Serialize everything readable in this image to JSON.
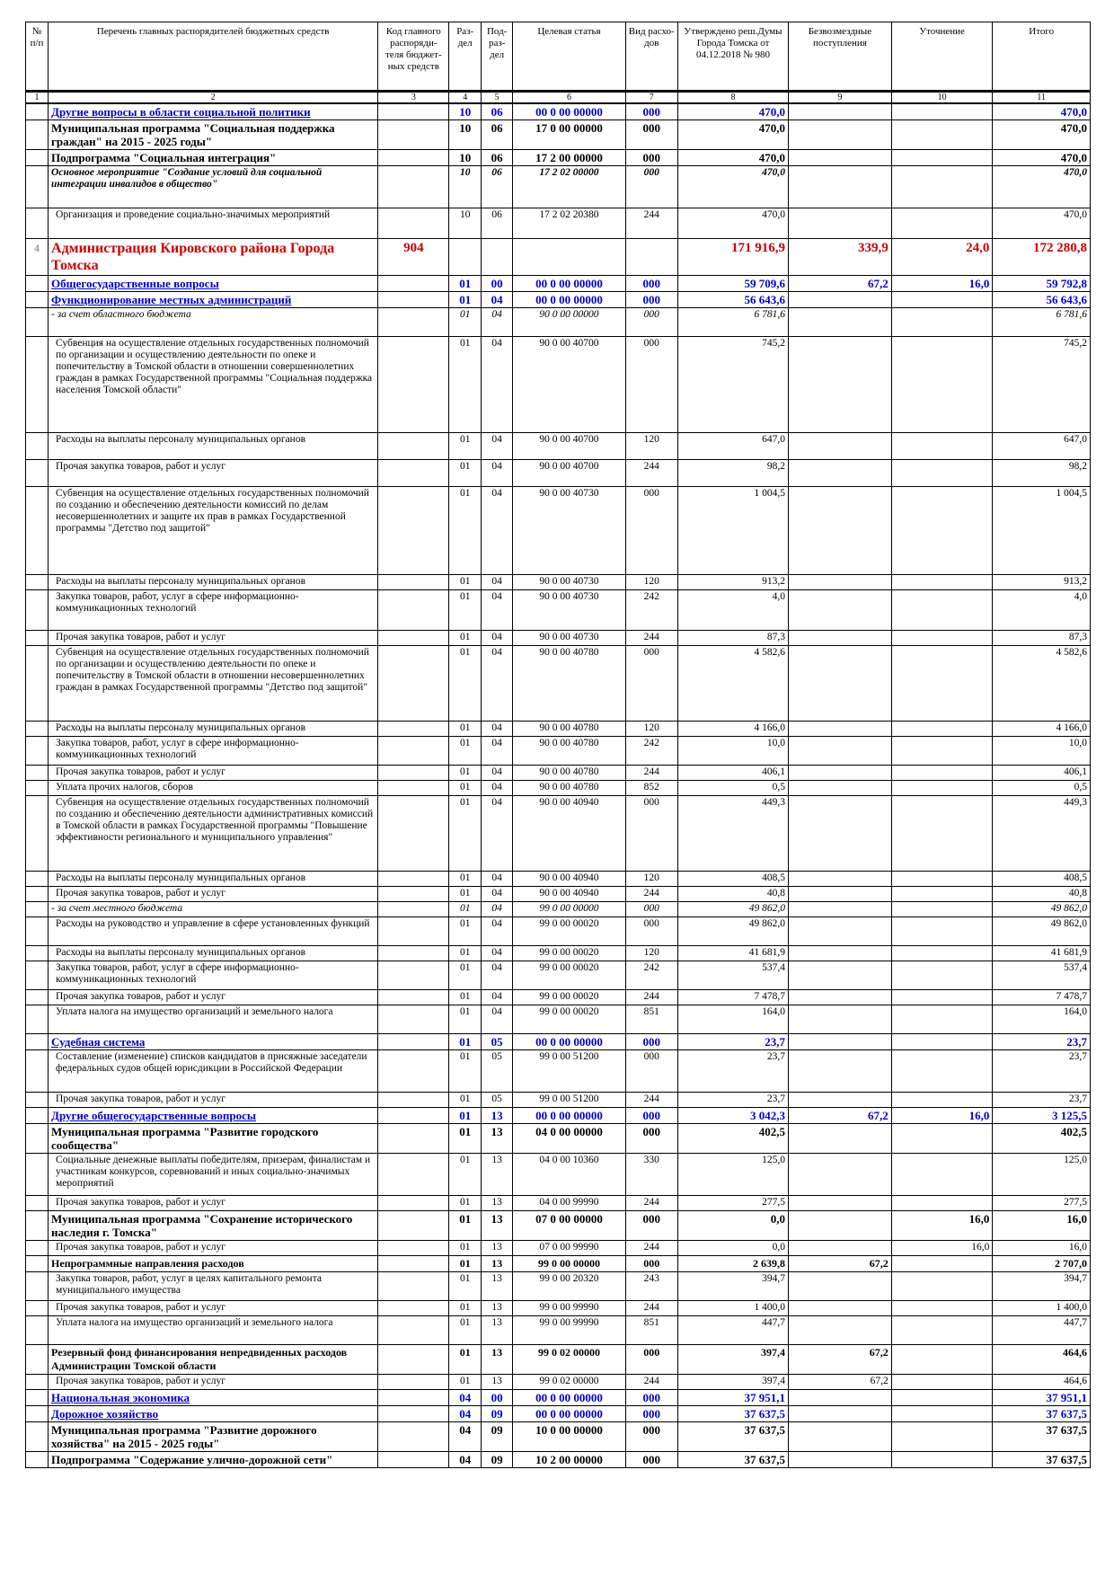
{
  "headers": [
    "№ п/п",
    "Перечень главных распорядителей бюджетных средств",
    "Код главного распоряди-теля бюджет-ных средств",
    "Раз-дел",
    "Под-раз-дел",
    "Целевая статья",
    "Вид расхо-дов",
    "Утверждено реш.Думы Города Томска от 04.12.2018 № 980",
    "Безвозмездные поступления",
    "Уточнение",
    "Итого"
  ],
  "col_numbers": [
    "1",
    "2",
    "3",
    "4",
    "5",
    "6",
    "7",
    "8",
    "9",
    "10",
    "11"
  ],
  "rows": [
    {
      "style": "blue",
      "h": 17,
      "num": "",
      "name": "Другие вопросы в области социальной политики",
      "code": "",
      "razdel": "10",
      "podrazdel": "06",
      "cs": "00 0 00 00000",
      "vr": "000",
      "approved": "470,0",
      "bezv": "",
      "utoch": "",
      "itogo": "470,0"
    },
    {
      "style": "bold",
      "h": 32,
      "num": "",
      "name": "Муниципальная программа \"Социальная поддержка граждан\" на 2015 - 2025 годы\"",
      "code": "",
      "razdel": "10",
      "podrazdel": "06",
      "cs": "17 0 00 00000",
      "vr": "000",
      "approved": "470,0",
      "bezv": "",
      "utoch": "",
      "itogo": "470,0"
    },
    {
      "style": "bold",
      "h": 17,
      "num": "",
      "name": "Подпрограмма \"Социальная интеграция\"",
      "code": "",
      "razdel": "10",
      "podrazdel": "06",
      "cs": "17 2 00 00000",
      "vr": "000",
      "approved": "470,0",
      "bezv": "",
      "utoch": "",
      "itogo": "470,0"
    },
    {
      "style": "bolditalic",
      "h": 47,
      "num": "",
      "name": "Основное мероприятие \"Создание условий для социальной интеграции инвалидов в общество\"",
      "code": "",
      "razdel": "10",
      "podrazdel": "06",
      "cs": "17 2 02 00000",
      "vr": "000",
      "approved": "470,0",
      "bezv": "",
      "utoch": "",
      "itogo": "470,0"
    },
    {
      "style": "plain",
      "h": 34,
      "num": "",
      "name": "Организация и проведение социально-значимых мероприятий",
      "code": "",
      "razdel": "10",
      "podrazdel": "06",
      "cs": "17 2 02 20380",
      "vr": "244",
      "approved": "470,0",
      "bezv": "",
      "utoch": "",
      "itogo": "470,0"
    },
    {
      "style": "red",
      "h": 40,
      "num": "4",
      "name": "Администрация Кировского района Города Томска",
      "code": "904",
      "razdel": "",
      "podrazdel": "",
      "cs": "",
      "vr": "",
      "approved": "171 916,9",
      "bezv": "339,9",
      "utoch": "24,0",
      "itogo": "172 280,8"
    },
    {
      "style": "blue",
      "h": 17,
      "num": "",
      "name": "Общегосударственные вопросы",
      "code": "",
      "razdel": "01",
      "podrazdel": "00",
      "cs": "00 0 00 00000",
      "vr": "000",
      "approved": "59 709,6",
      "bezv": "67,2",
      "utoch": "16,0",
      "itogo": "59 792,8"
    },
    {
      "style": "blue",
      "h": 17,
      "num": "",
      "name": "Функционирование местных администраций",
      "code": "",
      "razdel": "01",
      "podrazdel": "04",
      "cs": "00 0 00 00000",
      "vr": "000",
      "approved": "56 643,6",
      "bezv": "",
      "utoch": "",
      "itogo": "56 643,6"
    },
    {
      "style": "italic",
      "h": 32,
      "num": "",
      "name": "- за счет областного бюджета",
      "code": "",
      "razdel": "01",
      "podrazdel": "04",
      "cs": "90 0 00 00000",
      "vr": "000",
      "approved": "6 781,6",
      "bezv": "",
      "utoch": "",
      "itogo": "6 781,6"
    },
    {
      "style": "plain",
      "h": 107,
      "num": "",
      "name": "Субвенция на осуществление отдельных государственных полномочий по организации и осуществлению деятельности по опеке и попечительству в Томской области в отношении совершеннолетних граждан в рамках Государственной программы \"Социальная поддержка населения Томской области\"",
      "code": "",
      "razdel": "01",
      "podrazdel": "04",
      "cs": "90 0 00 40700",
      "vr": "000",
      "approved": "745,2",
      "bezv": "",
      "utoch": "",
      "itogo": "745,2"
    },
    {
      "style": "plain",
      "h": 30,
      "num": "",
      "name": "Расходы на выплаты персоналу муниципальных органов",
      "code": "",
      "razdel": "01",
      "podrazdel": "04",
      "cs": "90 0 00 40700",
      "vr": "120",
      "approved": "647,0",
      "bezv": "",
      "utoch": "",
      "itogo": "647,0"
    },
    {
      "style": "plain",
      "h": 30,
      "num": "",
      "name": "Прочая закупка товаров, работ и услуг",
      "code": "",
      "razdel": "01",
      "podrazdel": "04",
      "cs": "90 0 00 40700",
      "vr": "244",
      "approved": "98,2",
      "bezv": "",
      "utoch": "",
      "itogo": "98,2"
    },
    {
      "style": "plain",
      "h": 98,
      "num": "",
      "name": "Субвенция на осуществление отдельных государственных полномочий по созданию и обеспечению деятельности комиссий по делам несовершеннолетних и защите их прав в рамках Государственной программы \"Детство под защитой\"",
      "code": "",
      "razdel": "01",
      "podrazdel": "04",
      "cs": "90 0 00 40730",
      "vr": "000",
      "approved": "1 004,5",
      "bezv": "",
      "utoch": "",
      "itogo": "1 004,5"
    },
    {
      "style": "plain",
      "h": 17,
      "num": "",
      "name": "Расходы на выплаты персоналу муниципальных органов",
      "code": "",
      "razdel": "01",
      "podrazdel": "04",
      "cs": "90 0 00 40730",
      "vr": "120",
      "approved": "913,2",
      "bezv": "",
      "utoch": "",
      "itogo": "913,2"
    },
    {
      "style": "plain",
      "h": 45,
      "num": "",
      "name": "Закупка товаров, работ, услуг в сфере информационно-коммуникационных технологий",
      "code": "",
      "razdel": "01",
      "podrazdel": "04",
      "cs": "90 0 00 40730",
      "vr": "242",
      "approved": "4,0",
      "bezv": "",
      "utoch": "",
      "itogo": "4,0"
    },
    {
      "style": "plain",
      "h": 17,
      "num": "",
      "name": "Прочая закупка товаров, работ и услуг",
      "code": "",
      "razdel": "01",
      "podrazdel": "04",
      "cs": "90 0 00 40730",
      "vr": "244",
      "approved": "87,3",
      "bezv": "",
      "utoch": "",
      "itogo": "87,3"
    },
    {
      "style": "plain",
      "h": 84,
      "num": "",
      "name": "Субвенция на осуществление отдельных государственных полномочий по организации и осуществлению деятельности по опеке и попечительству в Томской области в отношении несовершеннолетних граждан в рамках Государственной программы \"Детство под защитой\"",
      "code": "",
      "razdel": "01",
      "podrazdel": "04",
      "cs": "90 0 00 40780",
      "vr": "000",
      "approved": "4 582,6",
      "bezv": "",
      "utoch": "",
      "itogo": "4 582,6"
    },
    {
      "style": "plain",
      "h": 17,
      "num": "",
      "name": "Расходы на выплаты персоналу муниципальных органов",
      "code": "",
      "razdel": "01",
      "podrazdel": "04",
      "cs": "90 0 00 40780",
      "vr": "120",
      "approved": "4 166,0",
      "bezv": "",
      "utoch": "",
      "itogo": "4 166,0"
    },
    {
      "style": "plain",
      "h": 32,
      "num": "",
      "name": "Закупка товаров, работ, услуг в сфере информационно-коммуникационных технологий",
      "code": "",
      "razdel": "01",
      "podrazdel": "04",
      "cs": "90 0 00 40780",
      "vr": "242",
      "approved": "10,0",
      "bezv": "",
      "utoch": "",
      "itogo": "10,0"
    },
    {
      "style": "plain",
      "h": 17,
      "num": "",
      "name": "Прочая закупка товаров, работ и услуг",
      "code": "",
      "razdel": "01",
      "podrazdel": "04",
      "cs": "90 0 00 40780",
      "vr": "244",
      "approved": "406,1",
      "bezv": "",
      "utoch": "",
      "itogo": "406,1"
    },
    {
      "style": "plain",
      "h": 17,
      "num": "",
      "name": "Уплата прочих налогов, сборов",
      "code": "",
      "razdel": "01",
      "podrazdel": "04",
      "cs": "90 0 00 40780",
      "vr": "852",
      "approved": "0,5",
      "bezv": "",
      "utoch": "",
      "itogo": "0,5"
    },
    {
      "style": "plain",
      "h": 84,
      "num": "",
      "name": "Субвенция на осуществление отдельных государственных полномочий по созданию и обеспечению деятельности административных комиссий в Томской области в рамках Государственной программы \"Повышение эффективности регионального и муниципального управления\"",
      "code": "",
      "razdel": "01",
      "podrazdel": "04",
      "cs": "90 0 00 40940",
      "vr": "000",
      "approved": "449,3",
      "bezv": "",
      "utoch": "",
      "itogo": "449,3"
    },
    {
      "style": "plain",
      "h": 17,
      "num": "",
      "name": "Расходы на выплаты персоналу муниципальных органов",
      "code": "",
      "razdel": "01",
      "podrazdel": "04",
      "cs": "90 0 00 40940",
      "vr": "120",
      "approved": "408,5",
      "bezv": "",
      "utoch": "",
      "itogo": "408,5"
    },
    {
      "style": "plain",
      "h": 17,
      "num": "",
      "name": "Прочая закупка товаров, работ и услуг",
      "code": "",
      "razdel": "01",
      "podrazdel": "04",
      "cs": "90 0 00 40940",
      "vr": "244",
      "approved": "40,8",
      "bezv": "",
      "utoch": "",
      "itogo": "40,8"
    },
    {
      "style": "italic",
      "h": 17,
      "num": "",
      "name": "- за счет местного бюджета",
      "code": "",
      "razdel": "01",
      "podrazdel": "04",
      "cs": "99 0 00 00000",
      "vr": "000",
      "approved": "49 862,0",
      "bezv": "",
      "utoch": "",
      "itogo": "49 862,0"
    },
    {
      "style": "plain",
      "h": 32,
      "num": "",
      "name": "Расходы на руководство и управление в сфере установленных функций",
      "code": "",
      "razdel": "01",
      "podrazdel": "04",
      "cs": "99 0 00 00020",
      "vr": "000",
      "approved": "49 862,0",
      "bezv": "",
      "utoch": "",
      "itogo": "49 862,0"
    },
    {
      "style": "plain",
      "h": 17,
      "num": "",
      "name": "Расходы на выплаты персоналу муниципальных органов",
      "code": "",
      "razdel": "01",
      "podrazdel": "04",
      "cs": "99 0 00 00020",
      "vr": "120",
      "approved": "41 681,9",
      "bezv": "",
      "utoch": "",
      "itogo": "41 681,9"
    },
    {
      "style": "plain",
      "h": 32,
      "num": "",
      "name": "Закупка товаров, работ, услуг в сфере информационно-коммуникационных технологий",
      "code": "",
      "razdel": "01",
      "podrazdel": "04",
      "cs": "99 0 00 00020",
      "vr": "242",
      "approved": "537,4",
      "bezv": "",
      "utoch": "",
      "itogo": "537,4"
    },
    {
      "style": "plain",
      "h": 17,
      "num": "",
      "name": "Прочая закупка товаров, работ и услуг",
      "code": "",
      "razdel": "01",
      "podrazdel": "04",
      "cs": "99 0 00 00020",
      "vr": "244",
      "approved": "7 478,7",
      "bezv": "",
      "utoch": "",
      "itogo": "7 478,7"
    },
    {
      "style": "plain",
      "h": 32,
      "num": "",
      "name": "Уплата налога на имущество организаций и земельного налога",
      "code": "",
      "razdel": "01",
      "podrazdel": "04",
      "cs": "99 0 00 00020",
      "vr": "851",
      "approved": "164,0",
      "bezv": "",
      "utoch": "",
      "itogo": "164,0"
    },
    {
      "style": "blue",
      "h": 17,
      "num": "",
      "name": "Судебная система",
      "code": "",
      "razdel": "01",
      "podrazdel": "05",
      "cs": "00 0 00 00000",
      "vr": "000",
      "approved": "23,7",
      "bezv": "",
      "utoch": "",
      "itogo": "23,7"
    },
    {
      "style": "plain",
      "h": 47,
      "num": "",
      "name": "Составление (изменение) списков кандидатов в присяжные заседатели федеральных судов общей юрисдикции в Российской Федерации",
      "code": "",
      "razdel": "01",
      "podrazdel": "05",
      "cs": "99 0 00 51200",
      "vr": "000",
      "approved": "23,7",
      "bezv": "",
      "utoch": "",
      "itogo": "23,7"
    },
    {
      "style": "plain",
      "h": 17,
      "num": "",
      "name": "Прочая закупка товаров, работ и услуг",
      "code": "",
      "razdel": "01",
      "podrazdel": "05",
      "cs": "99 0 00 51200",
      "vr": "244",
      "approved": "23,7",
      "bezv": "",
      "utoch": "",
      "itogo": "23,7"
    },
    {
      "style": "blue",
      "h": 17,
      "num": "",
      "name": "Другие общегосударственные вопросы",
      "code": "",
      "razdel": "01",
      "podrazdel": "13",
      "cs": "00 0 00 00000",
      "vr": "000",
      "approved": "3 042,3",
      "bezv": "67,2",
      "utoch": "16,0",
      "itogo": "3 125,5"
    },
    {
      "style": "bold",
      "h": 32,
      "num": "",
      "name": "Муниципальная программа \"Развитие городского сообщества\"",
      "code": "",
      "razdel": "01",
      "podrazdel": "13",
      "cs": "04 0 00 00000",
      "vr": "000",
      "approved": "402,5",
      "bezv": "",
      "utoch": "",
      "itogo": "402,5"
    },
    {
      "style": "plain",
      "h": 47,
      "num": "",
      "name": "Социальные денежные выплаты победителям, призерам, финалистам и участникам конкурсов, соревнований и иных социально-значимых мероприятий",
      "code": "",
      "razdel": "01",
      "podrazdel": "13",
      "cs": "04 0 00 10360",
      "vr": "330",
      "approved": "125,0",
      "bezv": "",
      "utoch": "",
      "itogo": "125,0"
    },
    {
      "style": "plain",
      "h": 17,
      "num": "",
      "name": "Прочая закупка товаров, работ и услуг",
      "code": "",
      "razdel": "01",
      "podrazdel": "13",
      "cs": "04 0 00 99990",
      "vr": "244",
      "approved": "277,5",
      "bezv": "",
      "utoch": "",
      "itogo": "277,5"
    },
    {
      "style": "bold",
      "h": 32,
      "num": "",
      "name": "Муниципальная программа \"Сохранение исторического наследия г. Томска\"",
      "code": "",
      "razdel": "01",
      "podrazdel": "13",
      "cs": "07 0 00 00000",
      "vr": "000",
      "approved": "0,0",
      "bezv": "",
      "utoch": "16,0",
      "itogo": "16,0"
    },
    {
      "style": "plain",
      "h": 17,
      "num": "",
      "name": "Прочая закупка товаров, работ и услуг",
      "code": "",
      "razdel": "01",
      "podrazdel": "13",
      "cs": "07 0 00 99990",
      "vr": "244",
      "approved": "0,0",
      "bezv": "",
      "utoch": "16,0",
      "itogo": "16,0"
    },
    {
      "style": "boldsmall",
      "h": 17,
      "num": "",
      "name": "Непрограммные направления расходов",
      "code": "",
      "razdel": "01",
      "podrazdel": "13",
      "cs": "99 0 00 00000",
      "vr": "000",
      "approved": "2 639,8",
      "bezv": "67,2",
      "utoch": "",
      "itogo": "2 707,0"
    },
    {
      "style": "plain",
      "h": 32,
      "num": "",
      "name": "Закупка товаров, работ, услуг в целях капитального ремонта муниципального имущества",
      "code": "",
      "razdel": "01",
      "podrazdel": "13",
      "cs": "99 0 00 20320",
      "vr": "243",
      "approved": "394,7",
      "bezv": "",
      "utoch": "",
      "itogo": "394,7"
    },
    {
      "style": "plain",
      "h": 17,
      "num": "",
      "name": "Прочая закупка товаров, работ и услуг",
      "code": "",
      "razdel": "01",
      "podrazdel": "13",
      "cs": "99 0 00 99990",
      "vr": "244",
      "approved": "1 400,0",
      "bezv": "",
      "utoch": "",
      "itogo": "1 400,0"
    },
    {
      "style": "plain",
      "h": 32,
      "num": "",
      "name": "Уплата налога на имущество организаций и земельного налога",
      "code": "",
      "razdel": "01",
      "podrazdel": "13",
      "cs": "99 0 00 99990",
      "vr": "851",
      "approved": "447,7",
      "bezv": "",
      "utoch": "",
      "itogo": "447,7"
    },
    {
      "style": "boldsmall",
      "h": 32,
      "num": "",
      "name": "Резервный фонд финансирования непредвиденных расходов Администрации Томской области",
      "code": "",
      "razdel": "01",
      "podrazdel": "13",
      "cs": "99 0 02 00000",
      "vr": "000",
      "approved": "397,4",
      "bezv": "67,2",
      "utoch": "",
      "itogo": "464,6"
    },
    {
      "style": "plain",
      "h": 17,
      "num": "",
      "name": "Прочая закупка товаров, работ и услуг",
      "code": "",
      "razdel": "01",
      "podrazdel": "13",
      "cs": "99 0 02 00000",
      "vr": "244",
      "approved": "397,4",
      "bezv": "67,2",
      "utoch": "",
      "itogo": "464,6"
    },
    {
      "style": "blue",
      "h": 17,
      "num": "",
      "name": "Национальная экономика",
      "code": "",
      "razdel": "04",
      "podrazdel": "00",
      "cs": "00 0 00 00000",
      "vr": "000",
      "approved": "37 951,1",
      "bezv": "",
      "utoch": "",
      "itogo": "37 951,1"
    },
    {
      "style": "blue",
      "h": 17,
      "num": "",
      "name": "Дорожное хозяйство",
      "code": "",
      "razdel": "04",
      "podrazdel": "09",
      "cs": "00 0 00 00000",
      "vr": "000",
      "approved": "37 637,5",
      "bezv": "",
      "utoch": "",
      "itogo": "37 637,5"
    },
    {
      "style": "bold",
      "h": 32,
      "num": "",
      "name": "Муниципальная программа \"Развитие дорожного хозяйства\" на 2015 - 2025 годы\"",
      "code": "",
      "razdel": "04",
      "podrazdel": "09",
      "cs": "10 0 00 00000",
      "vr": "000",
      "approved": "37 637,5",
      "bezv": "",
      "utoch": "",
      "itogo": "37 637,5"
    },
    {
      "style": "bold",
      "h": 17,
      "num": "",
      "name": "Подпрограмма \"Содержание улично-дорожной сети\"",
      "code": "",
      "razdel": "04",
      "podrazdel": "09",
      "cs": "10 2 00 00000",
      "vr": "000",
      "approved": "37 637,5",
      "bezv": "",
      "utoch": "",
      "itogo": "37 637,5"
    }
  ]
}
